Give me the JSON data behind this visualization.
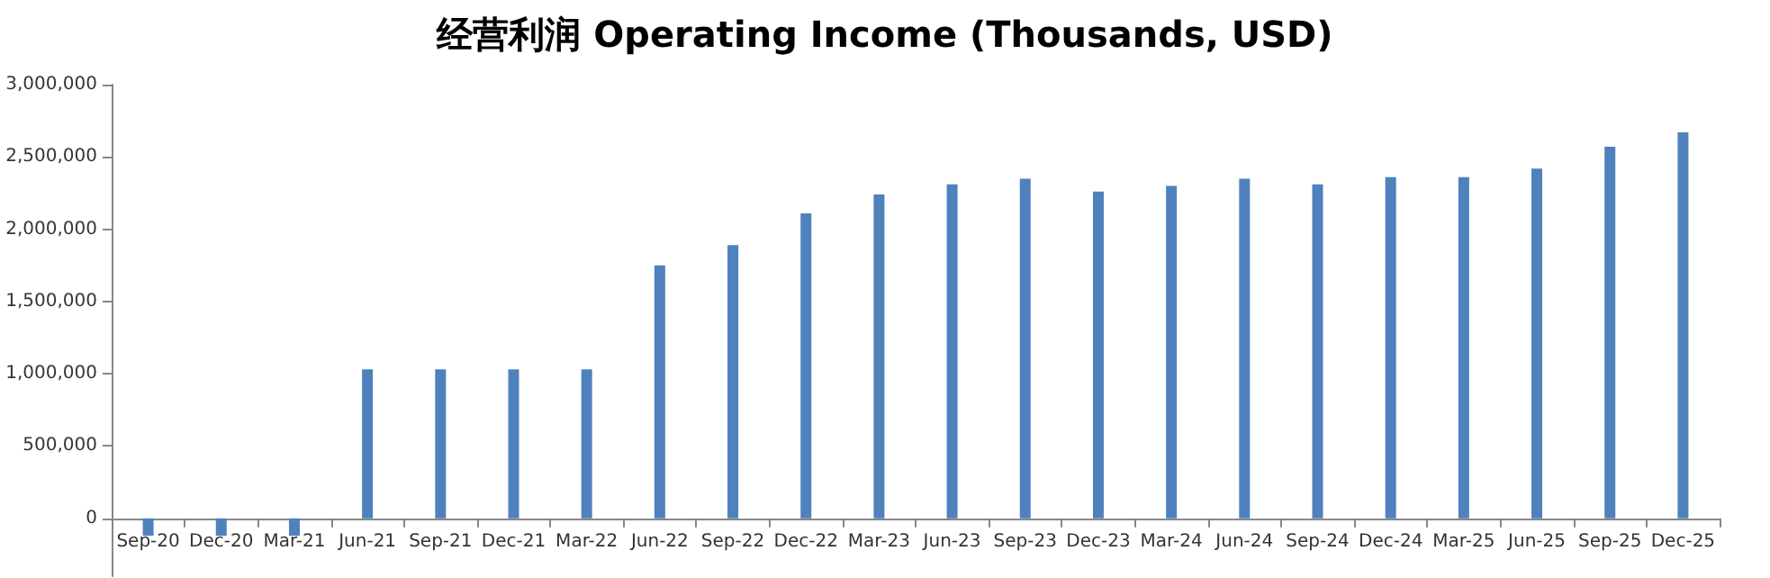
{
  "chart_data": {
    "type": "bar",
    "title": "经营利润 Operating Income (Thousands, USD)",
    "categories": [
      "Sep-20",
      "Dec-20",
      "Mar-21",
      "Jun-21",
      "Sep-21",
      "Dec-21",
      "Mar-22",
      "Jun-22",
      "Sep-22",
      "Dec-22",
      "Mar-23",
      "Jun-23",
      "Sep-23",
      "Dec-23",
      "Mar-24",
      "Jun-24",
      "Sep-24",
      "Dec-24",
      "Mar-25",
      "Jun-25",
      "Sep-25",
      "Dec-25"
    ],
    "values": [
      -120000,
      -120000,
      -120000,
      1030000,
      1030000,
      1030000,
      1030000,
      1750000,
      1890000,
      2110000,
      2240000,
      2310000,
      2350000,
      2260000,
      2300000,
      2350000,
      2310000,
      2360000,
      2360000,
      2420000,
      2570000,
      2670000
    ],
    "color": "#4f81bd",
    "ylim": [
      -400000,
      3000000
    ],
    "yticks": [
      {
        "value": 0,
        "label": "0"
      },
      {
        "value": 500000,
        "label": "500,000"
      },
      {
        "value": 1000000,
        "label": "1,000,000"
      },
      {
        "value": 1500000,
        "label": "1,500,000"
      },
      {
        "value": 2000000,
        "label": "2,000,000"
      },
      {
        "value": 2500000,
        "label": "2,500,000"
      },
      {
        "value": 3000000,
        "label": "3,000,000"
      }
    ],
    "tick_labels": "xy"
  }
}
